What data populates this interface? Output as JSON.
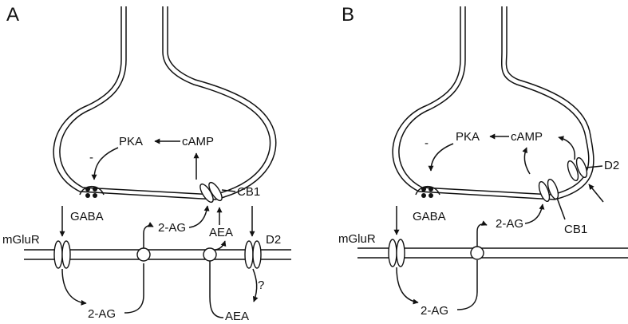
{
  "panels": {
    "a": {
      "label": "A",
      "minus": "-",
      "pka": "PKA",
      "camp": "cAMP",
      "cb1": "CB1",
      "gaba": "GABA",
      "mglur": "mGluR",
      "two_ag_top": "2-AG",
      "two_ag_bottom": "2-AG",
      "aea_top": "AEA",
      "aea_bottom": "AEA",
      "d2": "D2",
      "question": "?"
    },
    "b": {
      "label": "B",
      "minus": "-",
      "pka": "PKA",
      "camp": "cAMP",
      "d2": "D2",
      "cb1": "CB1",
      "gaba": "GABA",
      "mglur": "mGluR",
      "two_ag_top": "2-AG",
      "two_ag_bottom": "2-AG"
    }
  },
  "colors": {
    "ink": "#111111",
    "background": "#ffffff"
  }
}
